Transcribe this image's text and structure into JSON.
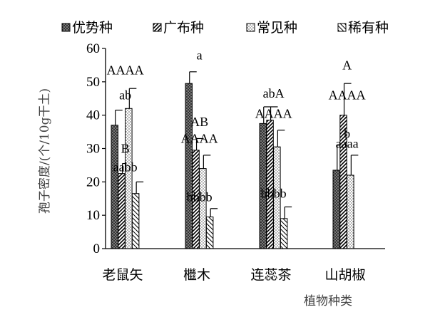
{
  "chart_data": {
    "type": "bar",
    "categories": [
      "老鼠矢",
      "檵木",
      "连蕊茶",
      "山胡椒"
    ],
    "series": [
      {
        "name": "优势种",
        "values": [
          37,
          49.5,
          37.5,
          23.5
        ],
        "errors": [
          4.5,
          3.5,
          5,
          7.5
        ],
        "pattern": "crosshatch",
        "fill": "#1a1a1a"
      },
      {
        "name": "广布种",
        "values": [
          22.5,
          29.5,
          38.5,
          40
        ],
        "errors": [
          3,
          3.5,
          4,
          9.5
        ],
        "pattern": "diagonal",
        "fill": "#ffffff"
      },
      {
        "name": "常见种",
        "values": [
          42,
          24,
          30.5,
          22
        ],
        "errors": [
          6,
          4,
          5,
          6
        ],
        "pattern": "dots",
        "fill": "#ffffff"
      },
      {
        "name": "稀有种",
        "values": [
          16.5,
          9.5,
          9,
          0
        ],
        "errors": [
          3.5,
          2.5,
          3.5,
          0
        ],
        "pattern": "light-diagonal",
        "fill": "#ffffff"
      }
    ],
    "xlabel": "植物种类",
    "ylabel": "孢子密度/(个/10g干土)",
    "ylim": [
      0,
      60
    ],
    "yticks": [
      0,
      10,
      20,
      30,
      40,
      50,
      60
    ],
    "legend_position": "top",
    "annotations": [
      {
        "text": "AAAA",
        "category": 0,
        "y": 53.5
      },
      {
        "text": "ab",
        "category": 0,
        "y": 46
      },
      {
        "text": "B",
        "category": 0,
        "y": 30
      },
      {
        "text": "aabb",
        "category": 0,
        "y": 24.5
      },
      {
        "text": "a",
        "category": 1,
        "y": 58
      },
      {
        "text": "AB",
        "category": 1,
        "y": 38
      },
      {
        "text": "AAAA",
        "category": 1,
        "y": 33
      },
      {
        "text": "bbbb",
        "category": 1,
        "y": 15.5
      },
      {
        "text": "abA",
        "category": 2,
        "y": 46.5
      },
      {
        "text": "AAAA",
        "category": 2,
        "y": 40.5
      },
      {
        "text": "bbbb",
        "category": 2,
        "y": 16.5
      },
      {
        "text": "A",
        "category": 3,
        "y": 55
      },
      {
        "text": "AAAA",
        "category": 3,
        "y": 46
      },
      {
        "text": "b",
        "category": 3,
        "y": 34.5
      },
      {
        "text": "aaaa",
        "category": 3,
        "y": 31.5
      }
    ]
  }
}
